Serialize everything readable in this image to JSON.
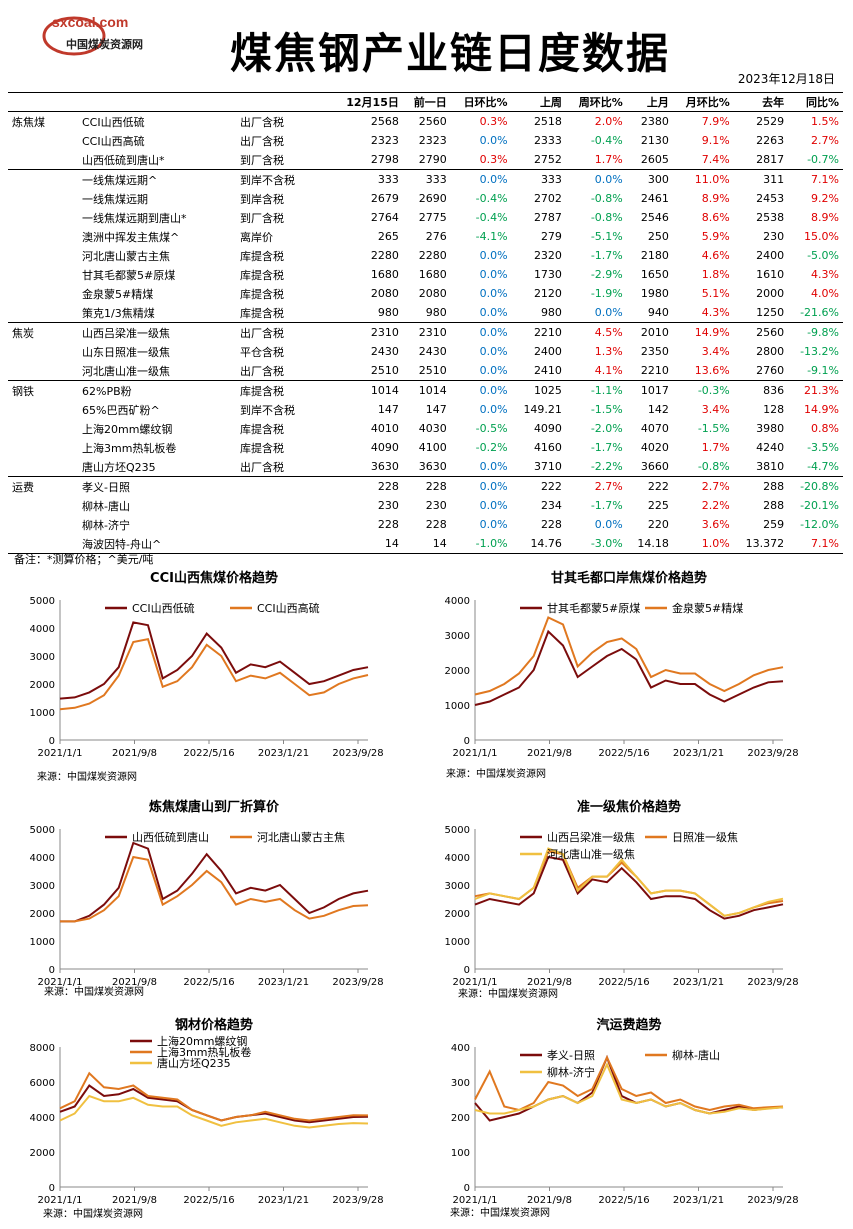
{
  "header": {
    "logo_url": "sxcoal.com",
    "logo_cn": "中国煤炭资源网",
    "title": "煤焦钢产业链日度数据",
    "date": "2023年12月18日"
  },
  "table": {
    "columns": [
      "12月15日",
      "前一日",
      "日环比%",
      "上周",
      "周环比%",
      "上月",
      "月环比%",
      "去年",
      "同比%"
    ],
    "groups": [
      {
        "cat": "炼焦煤",
        "rows": [
          {
            "name": "CCI山西低硫",
            "note": "出厂含税",
            "v": [
              "2568",
              "2560",
              "0.3%",
              "2518",
              "2.0%",
              "2380",
              "7.9%",
              "2529",
              "1.5%"
            ]
          },
          {
            "name": "CCI山西高硫",
            "note": "出厂含税",
            "v": [
              "2323",
              "2323",
              "0.0%",
              "2333",
              "-0.4%",
              "2130",
              "9.1%",
              "2263",
              "2.7%"
            ]
          },
          {
            "name": "山西低硫到唐山*",
            "note": "到厂含税",
            "v": [
              "2798",
              "2790",
              "0.3%",
              "2752",
              "1.7%",
              "2605",
              "7.4%",
              "2817",
              "-0.7%"
            ]
          }
        ]
      },
      {
        "cat": "",
        "rows": [
          {
            "name": "一线焦煤远期^",
            "note": "到岸不含税",
            "v": [
              "333",
              "333",
              "0.0%",
              "333",
              "0.0%",
              "300",
              "11.0%",
              "311",
              "7.1%"
            ]
          },
          {
            "name": "一线焦煤远期",
            "note": "到岸含税",
            "v": [
              "2679",
              "2690",
              "-0.4%",
              "2702",
              "-0.8%",
              "2461",
              "8.9%",
              "2453",
              "9.2%"
            ]
          },
          {
            "name": "一线焦煤远期到唐山*",
            "note": "到厂含税",
            "v": [
              "2764",
              "2775",
              "-0.4%",
              "2787",
              "-0.8%",
              "2546",
              "8.6%",
              "2538",
              "8.9%"
            ]
          },
          {
            "name": "澳洲中挥发主焦煤^",
            "note": "离岸价",
            "v": [
              "265",
              "276",
              "-4.1%",
              "279",
              "-5.1%",
              "250",
              "5.9%",
              "230",
              "15.0%"
            ]
          },
          {
            "name": "河北唐山蒙古主焦",
            "note": "库提含税",
            "v": [
              "2280",
              "2280",
              "0.0%",
              "2320",
              "-1.7%",
              "2180",
              "4.6%",
              "2400",
              "-5.0%"
            ]
          },
          {
            "name": "甘其毛都蒙5#原煤",
            "note": "库提含税",
            "v": [
              "1680",
              "1680",
              "0.0%",
              "1730",
              "-2.9%",
              "1650",
              "1.8%",
              "1610",
              "4.3%"
            ]
          },
          {
            "name": "金泉蒙5#精煤",
            "note": "库提含税",
            "v": [
              "2080",
              "2080",
              "0.0%",
              "2120",
              "-1.9%",
              "1980",
              "5.1%",
              "2000",
              "4.0%"
            ]
          },
          {
            "name": "策克1/3焦精煤",
            "note": "库提含税",
            "v": [
              "980",
              "980",
              "0.0%",
              "980",
              "0.0%",
              "940",
              "4.3%",
              "1250",
              "-21.6%"
            ]
          }
        ]
      },
      {
        "cat": "焦炭",
        "rows": [
          {
            "name": "山西吕梁准一级焦",
            "note": "出厂含税",
            "v": [
              "2310",
              "2310",
              "0.0%",
              "2210",
              "4.5%",
              "2010",
              "14.9%",
              "2560",
              "-9.8%"
            ]
          },
          {
            "name": "山东日照准一级焦",
            "note": "平仓含税",
            "v": [
              "2430",
              "2430",
              "0.0%",
              "2400",
              "1.3%",
              "2350",
              "3.4%",
              "2800",
              "-13.2%"
            ]
          },
          {
            "name": "河北唐山准一级焦",
            "note": "出厂含税",
            "v": [
              "2510",
              "2510",
              "0.0%",
              "2410",
              "4.1%",
              "2210",
              "13.6%",
              "2760",
              "-9.1%"
            ]
          }
        ]
      },
      {
        "cat": "钢铁",
        "rows": [
          {
            "name": "62%PB粉",
            "note": "库提含税",
            "v": [
              "1014",
              "1014",
              "0.0%",
              "1025",
              "-1.1%",
              "1017",
              "-0.3%",
              "836",
              "21.3%"
            ]
          },
          {
            "name": "65%巴西矿粉^",
            "note": "到岸不含税",
            "v": [
              "147",
              "147",
              "0.0%",
              "149.21",
              "-1.5%",
              "142",
              "3.4%",
              "128",
              "14.9%"
            ]
          },
          {
            "name": "上海20mm螺纹钢",
            "note": "库提含税",
            "v": [
              "4010",
              "4030",
              "-0.5%",
              "4090",
              "-2.0%",
              "4070",
              "-1.5%",
              "3980",
              "0.8%"
            ]
          },
          {
            "name": "上海3mm热轧板卷",
            "note": "库提含税",
            "v": [
              "4090",
              "4100",
              "-0.2%",
              "4160",
              "-1.7%",
              "4020",
              "1.7%",
              "4240",
              "-3.5%"
            ]
          },
          {
            "name": "唐山方坯Q235",
            "note": "出厂含税",
            "v": [
              "3630",
              "3630",
              "0.0%",
              "3710",
              "-2.2%",
              "3660",
              "-0.8%",
              "3810",
              "-4.7%"
            ]
          }
        ]
      },
      {
        "cat": "运费",
        "rows": [
          {
            "name": "孝义-日照",
            "note": "",
            "v": [
              "228",
              "228",
              "0.0%",
              "222",
              "2.7%",
              "222",
              "2.7%",
              "288",
              "-20.8%"
            ]
          },
          {
            "name": "柳林-唐山",
            "note": "",
            "v": [
              "230",
              "230",
              "0.0%",
              "234",
              "-1.7%",
              "225",
              "2.2%",
              "288",
              "-20.1%"
            ]
          },
          {
            "name": "柳林-济宁",
            "note": "",
            "v": [
              "228",
              "228",
              "0.0%",
              "228",
              "0.0%",
              "220",
              "3.6%",
              "259",
              "-12.0%"
            ]
          },
          {
            "name": "海波因特-舟山^",
            "note": "",
            "v": [
              "14",
              "14",
              "-1.0%",
              "14.76",
              "-3.0%",
              "14.18",
              "1.0%",
              "13.372",
              "7.1%"
            ]
          }
        ]
      }
    ]
  },
  "footnote": "备注：*测算价格；^美元/吨",
  "source_text": "来源：中国煤炭资源网",
  "colors": {
    "dark_red": "#7b0c0c",
    "orange": "#e07820",
    "gold": "#f0c040",
    "up": "#e00000",
    "down": "#00a050",
    "flat": "#0070c0"
  },
  "chart_data": [
    {
      "type": "line",
      "title": "CCI山西焦煤价格趋势",
      "ylim": [
        0,
        5000
      ],
      "yticks": [
        "0",
        "1000",
        "2000",
        "3000",
        "4000",
        "5000"
      ],
      "xticks": [
        "2021/1/1",
        "2021/9/8",
        "2022/5/16",
        "2023/1/21",
        "2023/9/28"
      ],
      "legend": "top",
      "series": [
        {
          "name": "CCI山西低硫",
          "color": "#7b0c0c",
          "values": [
            1480,
            1520,
            1700,
            2000,
            2600,
            4200,
            4100,
            2200,
            2500,
            3000,
            3800,
            3300,
            2400,
            2700,
            2600,
            2800,
            2400,
            2000,
            2100,
            2300,
            2500,
            2600
          ]
        },
        {
          "name": "CCI山西高硫",
          "color": "#e07820",
          "values": [
            1100,
            1150,
            1300,
            1600,
            2300,
            3500,
            3600,
            1900,
            2100,
            2600,
            3400,
            3000,
            2100,
            2300,
            2200,
            2400,
            2000,
            1600,
            1700,
            2000,
            2200,
            2320
          ]
        }
      ]
    },
    {
      "type": "line",
      "title": "甘其毛都口岸焦煤价格趋势",
      "ylim": [
        0,
        4000
      ],
      "yticks": [
        "0",
        "1000",
        "2000",
        "3000",
        "4000"
      ],
      "xticks": [
        "2021/1/1",
        "2021/9/8",
        "2022/5/16",
        "2023/1/21",
        "2023/9/28"
      ],
      "legend": "top",
      "series": [
        {
          "name": "甘其毛都蒙5#原煤",
          "color": "#7b0c0c",
          "values": [
            1000,
            1100,
            1300,
            1500,
            2000,
            3100,
            2700,
            1800,
            2100,
            2400,
            2600,
            2300,
            1500,
            1700,
            1600,
            1600,
            1300,
            1100,
            1300,
            1500,
            1650,
            1680
          ]
        },
        {
          "name": "金泉蒙5#精煤",
          "color": "#e07820",
          "values": [
            1300,
            1400,
            1600,
            1900,
            2400,
            3500,
            3300,
            2100,
            2500,
            2800,
            2900,
            2600,
            1800,
            2000,
            1900,
            1900,
            1600,
            1400,
            1600,
            1850,
            2000,
            2080
          ]
        }
      ]
    },
    {
      "type": "line",
      "title": "炼焦煤唐山到厂折算价",
      "ylim": [
        0,
        5000
      ],
      "yticks": [
        "0",
        "1000",
        "2000",
        "3000",
        "4000",
        "5000"
      ],
      "xticks": [
        "2021/1/1",
        "2021/9/8",
        "2022/5/16",
        "2023/1/21",
        "2023/9/28"
      ],
      "legend": "top",
      "series": [
        {
          "name": "山西低硫到唐山",
          "color": "#7b0c0c",
          "values": [
            1700,
            1700,
            1900,
            2300,
            2900,
            4500,
            4300,
            2500,
            2800,
            3400,
            4100,
            3500,
            2700,
            2900,
            2800,
            3000,
            2500,
            2000,
            2200,
            2500,
            2700,
            2798
          ]
        },
        {
          "name": "河北唐山蒙古主焦",
          "color": "#e07820",
          "values": [
            1700,
            1700,
            1800,
            2100,
            2600,
            4000,
            3900,
            2300,
            2600,
            3000,
            3500,
            3100,
            2300,
            2500,
            2400,
            2500,
            2100,
            1800,
            1900,
            2100,
            2250,
            2280
          ]
        }
      ]
    },
    {
      "type": "line",
      "title": "准一级焦价格趋势",
      "ylim": [
        0,
        5000
      ],
      "yticks": [
        "0",
        "1000",
        "2000",
        "3000",
        "4000",
        "5000"
      ],
      "xticks": [
        "2021/1/1",
        "2021/9/8",
        "2022/5/16",
        "2023/1/21",
        "2023/9/28"
      ],
      "legend": "top",
      "series": [
        {
          "name": "山西吕梁准一级焦",
          "color": "#7b0c0c",
          "values": [
            2300,
            2500,
            2400,
            2300,
            2700,
            4000,
            3900,
            2700,
            3200,
            3100,
            3600,
            3100,
            2500,
            2600,
            2600,
            2500,
            2100,
            1800,
            1900,
            2100,
            2200,
            2310
          ]
        },
        {
          "name": "日照准一级焦",
          "color": "#e07820",
          "values": [
            2600,
            2700,
            2600,
            2500,
            2900,
            4200,
            4100,
            2900,
            3300,
            3300,
            3800,
            3300,
            2700,
            2800,
            2800,
            2700,
            2300,
            1900,
            2000,
            2200,
            2350,
            2430
          ]
        },
        {
          "name": "河北唐山准一级焦",
          "color": "#f0c040",
          "values": [
            2500,
            2700,
            2600,
            2500,
            2900,
            4300,
            4100,
            2800,
            3300,
            3300,
            3900,
            3300,
            2700,
            2800,
            2800,
            2700,
            2300,
            1900,
            2000,
            2200,
            2400,
            2510
          ]
        }
      ]
    },
    {
      "type": "line",
      "title": "钢材价格趋势",
      "ylim": [
        0,
        8000
      ],
      "yticks": [
        "0",
        "2000",
        "4000",
        "6000",
        "8000"
      ],
      "xticks": [
        "2021/1/1",
        "2021/9/8",
        "2022/5/16",
        "2023/1/21",
        "2023/9/28"
      ],
      "legend": "top-left",
      "series": [
        {
          "name": "上海20mm螺纹钢",
          "color": "#7b0c0c",
          "values": [
            4300,
            4600,
            5800,
            5200,
            5300,
            5600,
            5100,
            5000,
            4900,
            4400,
            4100,
            3800,
            4000,
            4100,
            4200,
            4000,
            3800,
            3700,
            3800,
            3900,
            4000,
            4010
          ]
        },
        {
          "name": "上海3mm热轧板卷",
          "color": "#e07820",
          "values": [
            4500,
            4900,
            6500,
            5700,
            5600,
            5800,
            5200,
            5100,
            5000,
            4400,
            4100,
            3800,
            4000,
            4100,
            4300,
            4100,
            3900,
            3800,
            3900,
            4000,
            4100,
            4090
          ]
        },
        {
          "name": "唐山方坯Q235",
          "color": "#f0c040",
          "values": [
            3800,
            4200,
            5200,
            4900,
            4900,
            5100,
            4700,
            4600,
            4600,
            4100,
            3800,
            3500,
            3700,
            3800,
            3900,
            3700,
            3500,
            3400,
            3500,
            3600,
            3650,
            3630
          ]
        }
      ]
    },
    {
      "type": "line",
      "title": "汽运费趋势",
      "ylim": [
        0,
        400
      ],
      "yticks": [
        "0",
        "100",
        "200",
        "300",
        "400"
      ],
      "xticks": [
        "2021/1/1",
        "2021/9/8",
        "2022/5/16",
        "2023/1/21",
        "2023/9/28"
      ],
      "legend": "top",
      "series": [
        {
          "name": "孝义-日照",
          "color": "#7b0c0c",
          "values": [
            240,
            190,
            200,
            210,
            230,
            250,
            260,
            240,
            270,
            370,
            260,
            240,
            250,
            230,
            240,
            220,
            210,
            220,
            230,
            220,
            225,
            228
          ]
        },
        {
          "name": "柳林-唐山",
          "color": "#e07820",
          "values": [
            250,
            330,
            230,
            220,
            240,
            300,
            290,
            260,
            280,
            370,
            280,
            260,
            270,
            240,
            250,
            230,
            220,
            230,
            235,
            225,
            228,
            230
          ]
        },
        {
          "name": "柳林-济宁",
          "color": "#f0c040",
          "values": [
            220,
            210,
            210,
            220,
            230,
            250,
            260,
            240,
            260,
            350,
            250,
            240,
            250,
            230,
            240,
            220,
            210,
            215,
            225,
            220,
            224,
            228
          ]
        }
      ]
    }
  ]
}
